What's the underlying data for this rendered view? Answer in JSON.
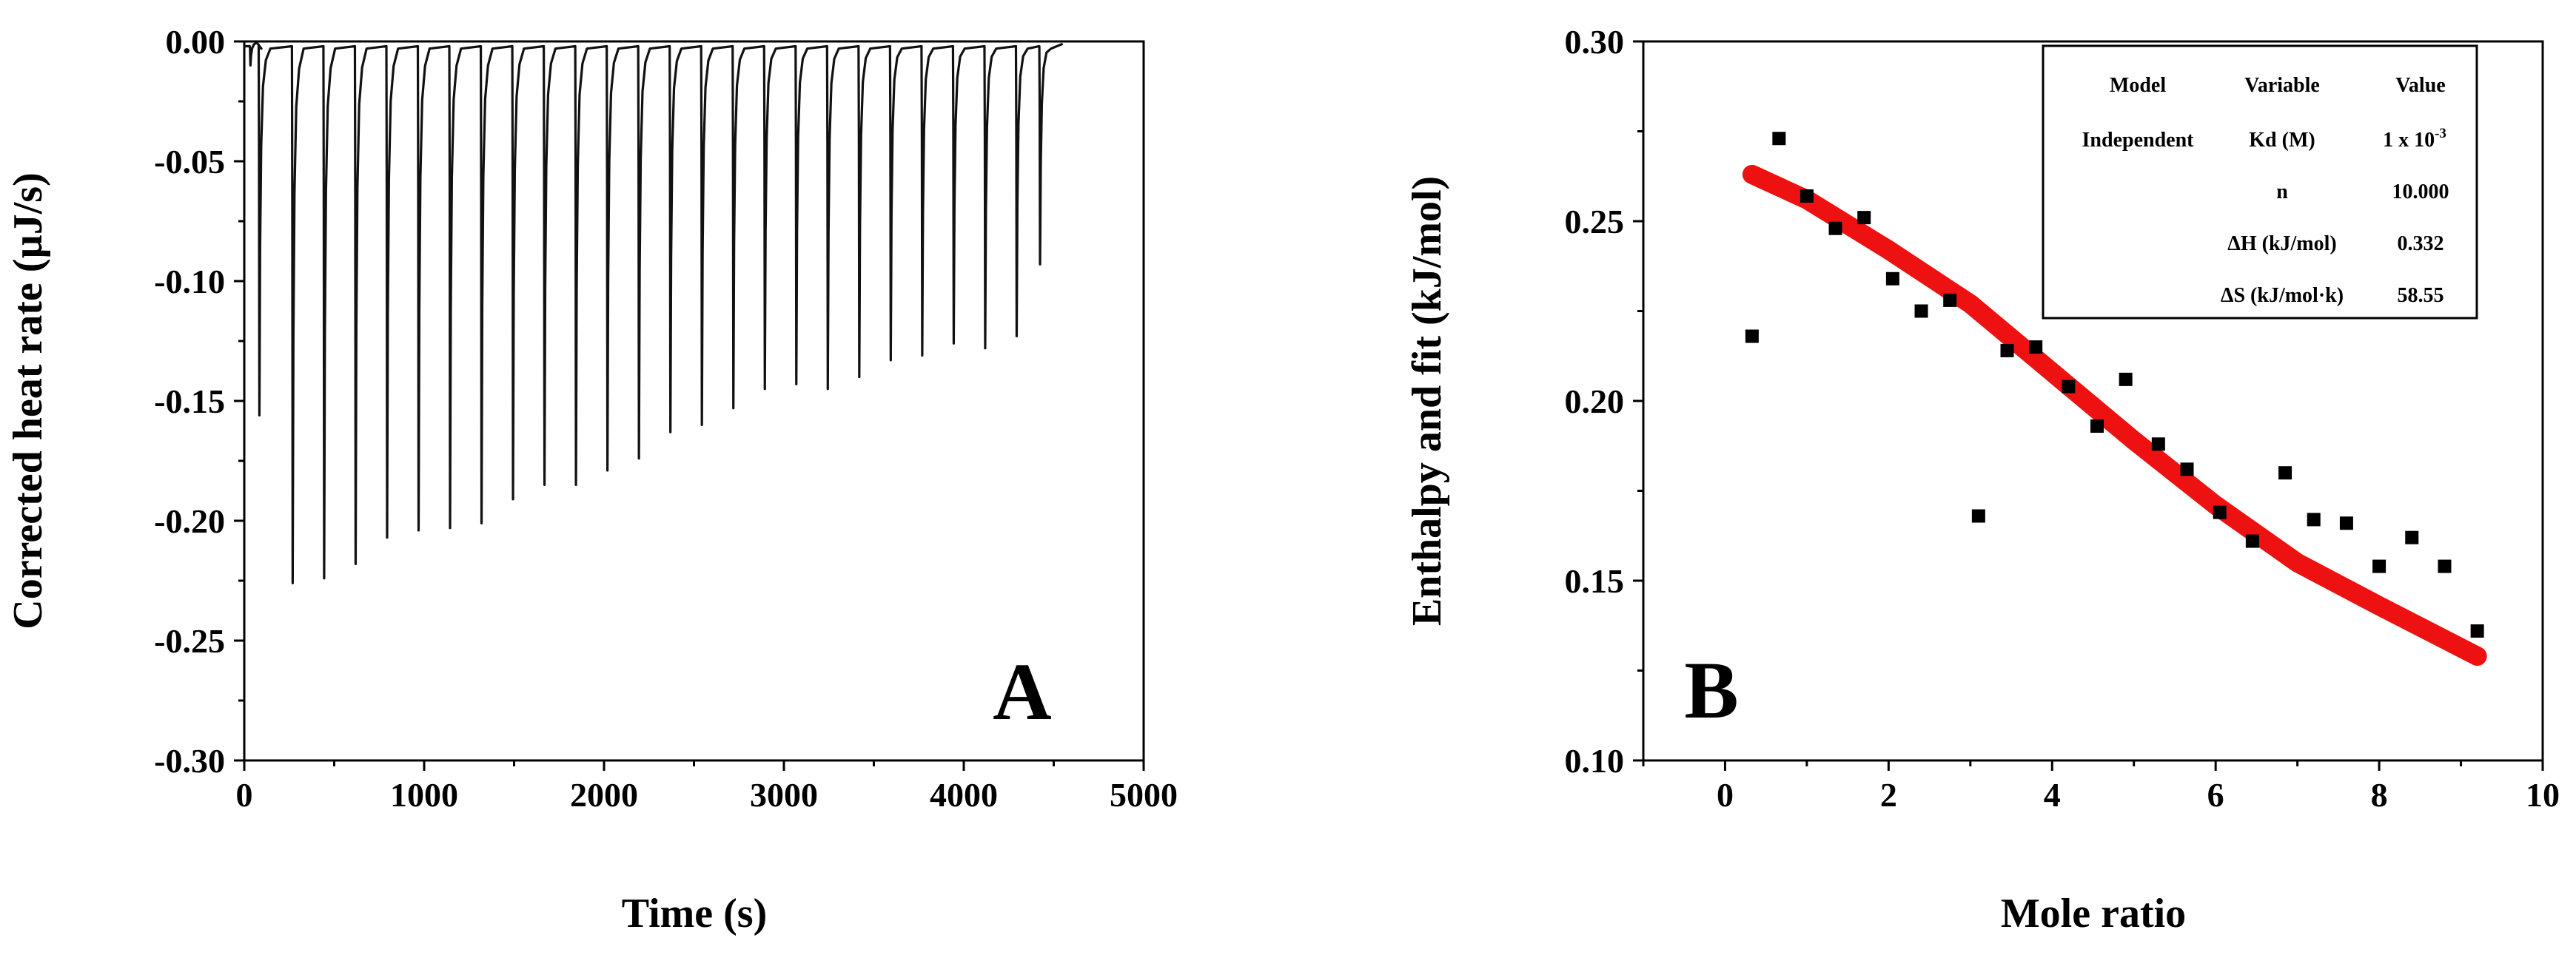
{
  "chart_data": [
    {
      "panel": "A",
      "type": "line",
      "xlabel": "Time (s)",
      "ylabel": "Corrected heat rate (µJ/s)",
      "xlim": [
        0,
        5000
      ],
      "ylim": [
        -0.3,
        0.0
      ],
      "xticks": [
        "0",
        "1000",
        "2000",
        "3000",
        "4000",
        "5000"
      ],
      "yticks": [
        "-0.30",
        "-0.25",
        "-0.20",
        "-0.15",
        "-0.10",
        "-0.05",
        "0.00"
      ],
      "grid": false,
      "injection_start_s": 0,
      "injection_end_s": 4550,
      "peaks": [
        {
          "t": 30,
          "depth": -0.01
        },
        {
          "t": 80,
          "depth": -0.156
        },
        {
          "t": 265,
          "depth": -0.226
        },
        {
          "t": 440,
          "depth": -0.224
        },
        {
          "t": 615,
          "depth": -0.218
        },
        {
          "t": 790,
          "depth": -0.207
        },
        {
          "t": 965,
          "depth": -0.204
        },
        {
          "t": 1140,
          "depth": -0.203
        },
        {
          "t": 1315,
          "depth": -0.201
        },
        {
          "t": 1490,
          "depth": -0.191
        },
        {
          "t": 1665,
          "depth": -0.185
        },
        {
          "t": 1840,
          "depth": -0.185
        },
        {
          "t": 2015,
          "depth": -0.179
        },
        {
          "t": 2190,
          "depth": -0.174
        },
        {
          "t": 2365,
          "depth": -0.163
        },
        {
          "t": 2540,
          "depth": -0.16
        },
        {
          "t": 2715,
          "depth": -0.153
        },
        {
          "t": 2890,
          "depth": -0.145
        },
        {
          "t": 3065,
          "depth": -0.143
        },
        {
          "t": 3240,
          "depth": -0.145
        },
        {
          "t": 3415,
          "depth": -0.14
        },
        {
          "t": 3590,
          "depth": -0.133
        },
        {
          "t": 3765,
          "depth": -0.131
        },
        {
          "t": 3940,
          "depth": -0.126
        },
        {
          "t": 4115,
          "depth": -0.128
        },
        {
          "t": 4290,
          "depth": -0.123
        },
        {
          "t": 4420,
          "depth": -0.093
        }
      ]
    },
    {
      "panel": "B",
      "type": "scatter",
      "xlabel": "Mole ratio",
      "ylabel": "Enthalpy and fit (kJ/mol)",
      "xlim": [
        -1,
        10
      ],
      "ylim": [
        0.1,
        0.3
      ],
      "xticks": [
        "0",
        "2",
        "4",
        "6",
        "8",
        "10"
      ],
      "yticks": [
        "0.10",
        "0.15",
        "0.20",
        "0.25",
        "0.30"
      ],
      "grid": false,
      "series": [
        {
          "kind": "points",
          "color": "#000000",
          "x": [
            0.33,
            0.66,
            1.0,
            1.35,
            1.7,
            2.05,
            2.4,
            2.75,
            3.1,
            3.45,
            3.8,
            4.2,
            4.55,
            4.9,
            5.3,
            5.65,
            6.05,
            6.45,
            6.85,
            7.2,
            7.6,
            8.0,
            8.4,
            8.8,
            9.2
          ],
          "y": [
            0.218,
            0.273,
            0.257,
            0.248,
            0.251,
            0.234,
            0.225,
            0.228,
            0.168,
            0.214,
            0.215,
            0.204,
            0.193,
            0.206,
            0.188,
            0.181,
            0.169,
            0.161,
            0.18,
            0.167,
            0.166,
            0.154,
            0.162,
            0.154,
            0.136
          ]
        },
        {
          "kind": "fit",
          "color": "#ee1111",
          "x": [
            0.33,
            1.0,
            2.0,
            3.0,
            4.0,
            5.0,
            6.0,
            7.0,
            8.0,
            9.2
          ],
          "y": [
            0.263,
            0.256,
            0.242,
            0.227,
            0.208,
            0.189,
            0.171,
            0.155,
            0.143,
            0.129
          ]
        }
      ],
      "legend_table": {
        "position": "top-right",
        "headers": [
          "Model",
          "Variable",
          "Value"
        ],
        "rows": [
          [
            "Independent",
            "Kd (M)",
            "1 x 10"
          ],
          [
            "",
            "n",
            "10.000"
          ],
          [
            "",
            "ΔH (kJ/mol)",
            "0.332"
          ],
          [
            "",
            "ΔS (kJ/mol·k)",
            "58.55"
          ]
        ],
        "kd_exponent": "-3"
      }
    }
  ]
}
